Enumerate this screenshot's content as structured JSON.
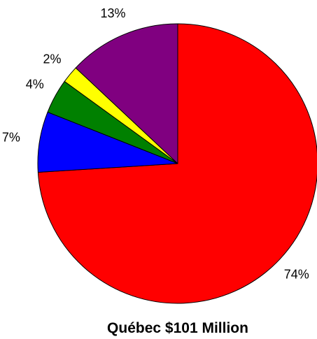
{
  "chart_data": {
    "type": "pie",
    "title": "Québec $101 Million",
    "start": "top",
    "direction": "clockwise",
    "slices": [
      {
        "value": 74,
        "label": "74%",
        "color": "#ff0000"
      },
      {
        "value": 7,
        "label": "7%",
        "color": "#0000ff"
      },
      {
        "value": 4,
        "label": "4%",
        "color": "#008000"
      },
      {
        "value": 2,
        "label": "2%",
        "color": "#ffff00"
      },
      {
        "value": 13,
        "label": "13%",
        "color": "#800080"
      }
    ],
    "legend": "none"
  }
}
